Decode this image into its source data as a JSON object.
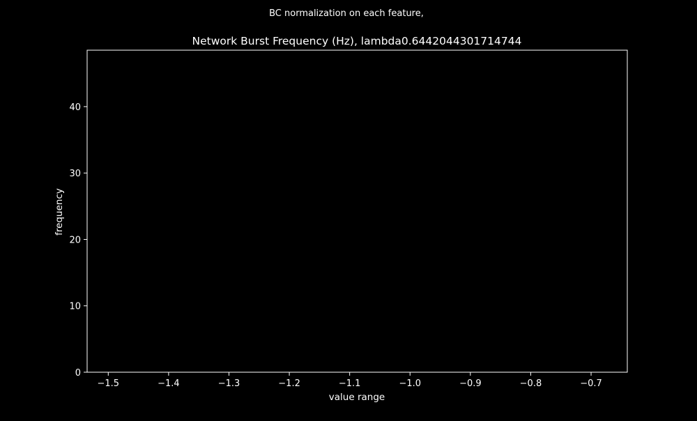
{
  "chart_data": {
    "type": "bar",
    "suptitle": "BC normalization on each feature,",
    "title": "Network Burst Frequency (Hz), lambda0.6442044301714744",
    "xlabel": "value range",
    "ylabel": "frequency",
    "xlim": [
      -1.535,
      -0.64
    ],
    "ylim": [
      0,
      48.5
    ],
    "xticks": [
      -1.5,
      -1.4,
      -1.3,
      -1.2,
      -1.1,
      -1.0,
      -0.9,
      -0.8,
      -0.7
    ],
    "xtick_labels": [
      "−1.5",
      "−1.4",
      "−1.3",
      "−1.2",
      "−1.1",
      "−1.0",
      "−0.9",
      "−0.8",
      "−0.7"
    ],
    "yticks": [
      0,
      10,
      20,
      30,
      40
    ],
    "ytick_labels": [
      "0",
      "10",
      "20",
      "30",
      "40"
    ],
    "grid": false,
    "background": "#000000",
    "foreground": "#ffffff",
    "series": [
      {
        "name": "frequency",
        "bins": [],
        "values": [],
        "color": "#ffffff"
      }
    ]
  }
}
